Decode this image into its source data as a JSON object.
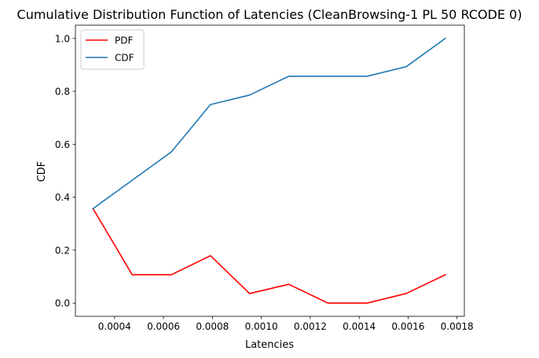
{
  "chart_data": {
    "type": "line",
    "title": "Cumulative Distribution Function of Latencies (CleanBrowsing-1 PL 50 RCODE 0)",
    "xlabel": "Latencies",
    "ylabel": "CDF",
    "xlim": [
      0.00024,
      0.00183
    ],
    "ylim": [
      -0.05,
      1.05
    ],
    "x_ticks": [
      0.0004,
      0.0006,
      0.0008,
      0.001,
      0.0012,
      0.0014,
      0.0016,
      0.0018
    ],
    "x_tick_labels": [
      "0.0004",
      "0.0006",
      "0.0008",
      "0.0010",
      "0.0012",
      "0.0014",
      "0.0016",
      "0.0018"
    ],
    "y_ticks": [
      0.0,
      0.2,
      0.4,
      0.6,
      0.8,
      1.0
    ],
    "y_tick_labels": [
      "0.0",
      "0.2",
      "0.4",
      "0.6",
      "0.8",
      "1.0"
    ],
    "grid": false,
    "legend_position": "top-left",
    "x": [
      0.000312,
      0.000472,
      0.000632,
      0.000792,
      0.000952,
      0.001112,
      0.001272,
      0.001432,
      0.001592,
      0.001752
    ],
    "series": [
      {
        "name": "PDF",
        "color": "#ff0000",
        "values": [
          0.357,
          0.107,
          0.107,
          0.179,
          0.036,
          0.071,
          0.0,
          0.0,
          0.036,
          0.107
        ]
      },
      {
        "name": "CDF",
        "color": "#1f77b4",
        "values": [
          0.357,
          0.464,
          0.571,
          0.75,
          0.786,
          0.857,
          0.857,
          0.857,
          0.893,
          1.0
        ]
      }
    ]
  }
}
